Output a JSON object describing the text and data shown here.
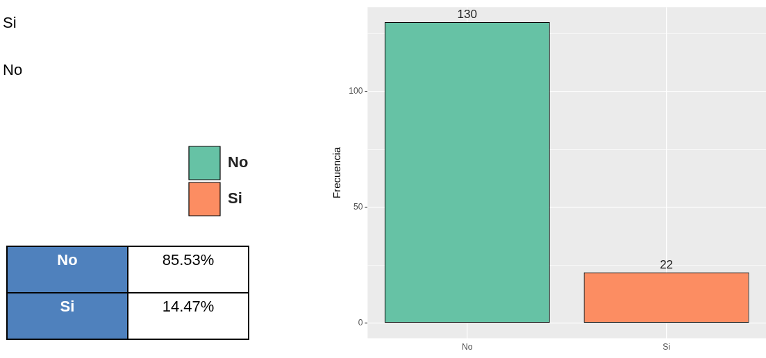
{
  "chart_data": [
    {
      "type": "other",
      "annotations": [
        "Si",
        "No",
        "No",
        "85.53%",
        "Si",
        "14.47%"
      ]
    },
    {
      "type": "bar",
      "categories": [
        "No",
        "Si"
      ],
      "series": [
        {
          "name": "No",
          "color": "#66c2a5",
          "values": [
            130,
            null
          ]
        },
        {
          "name": "Si",
          "color": "#fc8d62",
          "values": [
            null,
            22
          ]
        }
      ],
      "ylabel": "Frecuencia",
      "ylim": [
        -6.5,
        136.5
      ],
      "yticks": [
        0,
        50,
        100
      ],
      "grid": true,
      "legend": "left",
      "data_labels": true
    }
  ]
}
